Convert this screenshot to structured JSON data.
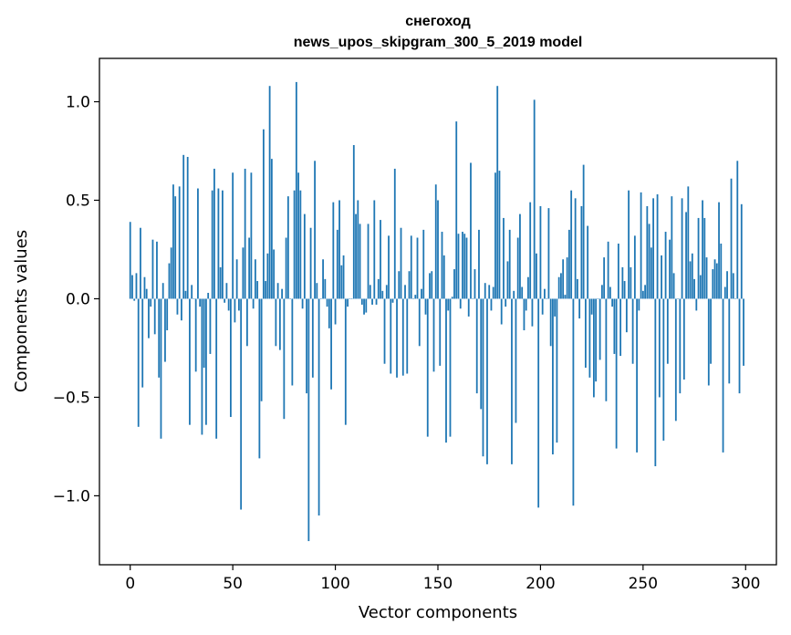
{
  "chart_data": {
    "type": "bar",
    "title": "снегоход",
    "subtitle": "news_upos_skipgram_300_5_2019 model",
    "xlabel": "Vector components",
    "ylabel": "Components values",
    "xlim": [
      -15,
      315
    ],
    "ylim": [
      -1.35,
      1.22
    ],
    "xticks": [
      0,
      50,
      100,
      150,
      200,
      250,
      300
    ],
    "xtick_labels": [
      "0",
      "50",
      "100",
      "150",
      "200",
      "250",
      "300"
    ],
    "yticks": [
      -1.0,
      -0.5,
      0.0,
      0.5,
      1.0
    ],
    "ytick_labels": [
      "−1.0",
      "−0.5",
      "0.0",
      "0.5",
      "1.0"
    ],
    "grid": false,
    "bar_color": "#1f77b4",
    "x": [
      0,
      1,
      2,
      3,
      4,
      5,
      6,
      7,
      8,
      9,
      10,
      11,
      12,
      13,
      14,
      15,
      16,
      17,
      18,
      19,
      20,
      21,
      22,
      23,
      24,
      25,
      26,
      27,
      28,
      29,
      30,
      31,
      32,
      33,
      34,
      35,
      36,
      37,
      38,
      39,
      40,
      41,
      42,
      43,
      44,
      45,
      46,
      47,
      48,
      49,
      50,
      51,
      52,
      53,
      54,
      55,
      56,
      57,
      58,
      59,
      60,
      61,
      62,
      63,
      64,
      65,
      66,
      67,
      68,
      69,
      70,
      71,
      72,
      73,
      74,
      75,
      76,
      77,
      78,
      79,
      80,
      81,
      82,
      83,
      84,
      85,
      86,
      87,
      88,
      89,
      90,
      91,
      92,
      93,
      94,
      95,
      96,
      97,
      98,
      99,
      100,
      101,
      102,
      103,
      104,
      105,
      106,
      107,
      108,
      109,
      110,
      111,
      112,
      113,
      114,
      115,
      116,
      117,
      118,
      119,
      120,
      121,
      122,
      123,
      124,
      125,
      126,
      127,
      128,
      129,
      130,
      131,
      132,
      133,
      134,
      135,
      136,
      137,
      138,
      139,
      140,
      141,
      142,
      143,
      144,
      145,
      146,
      147,
      148,
      149,
      150,
      151,
      152,
      153,
      154,
      155,
      156,
      157,
      158,
      159,
      160,
      161,
      162,
      163,
      164,
      165,
      166,
      167,
      168,
      169,
      170,
      171,
      172,
      173,
      174,
      175,
      176,
      177,
      178,
      179,
      180,
      181,
      182,
      183,
      184,
      185,
      186,
      187,
      188,
      189,
      190,
      191,
      192,
      193,
      194,
      195,
      196,
      197,
      198,
      199,
      200,
      201,
      202,
      203,
      204,
      205,
      206,
      207,
      208,
      209,
      210,
      211,
      212,
      213,
      214,
      215,
      216,
      217,
      218,
      219,
      220,
      221,
      222,
      223,
      224,
      225,
      226,
      227,
      228,
      229,
      230,
      231,
      232,
      233,
      234,
      235,
      236,
      237,
      238,
      239,
      240,
      241,
      242,
      243,
      244,
      245,
      246,
      247,
      248,
      249,
      250,
      251,
      252,
      253,
      254,
      255,
      256,
      257,
      258,
      259,
      260,
      261,
      262,
      263,
      264,
      265,
      266,
      267,
      268,
      269,
      270,
      271,
      272,
      273,
      274,
      275,
      276,
      277,
      278,
      279,
      280,
      281,
      282,
      283,
      284,
      285,
      286,
      287,
      288,
      289,
      290,
      291,
      292,
      293,
      294,
      295,
      296,
      297,
      298,
      299
    ],
    "values": [
      0.39,
      0.12,
      -0.01,
      0.13,
      -0.65,
      0.36,
      -0.45,
      0.11,
      0.05,
      -0.2,
      -0.04,
      0.3,
      -0.18,
      0.29,
      -0.4,
      -0.71,
      0.08,
      -0.32,
      -0.16,
      0.18,
      0.26,
      0.58,
      0.52,
      -0.08,
      0.57,
      -0.11,
      0.73,
      0.04,
      0.72,
      -0.64,
      0.07,
      0.0,
      -0.37,
      0.56,
      -0.04,
      -0.69,
      -0.35,
      -0.64,
      0.03,
      -0.28,
      0.55,
      0.66,
      -0.71,
      0.56,
      0.16,
      0.55,
      -0.02,
      0.08,
      -0.06,
      -0.6,
      0.64,
      -0.12,
      0.2,
      -0.06,
      -1.07,
      0.26,
      0.66,
      -0.24,
      0.31,
      0.64,
      -0.05,
      0.2,
      0.09,
      -0.81,
      -0.52,
      0.86,
      0.09,
      0.23,
      1.08,
      0.71,
      0.25,
      -0.24,
      0.08,
      -0.26,
      0.05,
      -0.61,
      0.31,
      0.52,
      0.0,
      -0.44,
      0.55,
      1.1,
      0.64,
      0.55,
      -0.05,
      0.43,
      -0.48,
      -1.23,
      0.36,
      -0.4,
      0.7,
      0.08,
      -1.1,
      0.0,
      0.2,
      0.1,
      -0.04,
      -0.15,
      -0.46,
      0.49,
      -0.13,
      0.35,
      0.5,
      0.17,
      0.22,
      -0.64,
      -0.04,
      0.0,
      0.0,
      0.78,
      0.43,
      0.5,
      0.38,
      -0.03,
      -0.08,
      -0.07,
      0.38,
      0.07,
      -0.03,
      0.5,
      -0.03,
      0.1,
      0.4,
      0.04,
      -0.33,
      0.07,
      0.32,
      -0.38,
      -0.02,
      0.66,
      -0.4,
      0.14,
      0.36,
      -0.39,
      0.07,
      -0.38,
      0.14,
      0.32,
      0.0,
      0.02,
      0.31,
      -0.24,
      0.05,
      0.35,
      -0.08,
      -0.7,
      0.13,
      0.14,
      -0.37,
      0.58,
      0.5,
      -0.34,
      0.34,
      0.22,
      -0.73,
      -0.06,
      -0.7,
      0.01,
      0.15,
      0.9,
      0.33,
      -0.05,
      0.34,
      0.33,
      0.31,
      -0.09,
      0.69,
      0.0,
      0.15,
      -0.48,
      0.35,
      -0.56,
      -0.8,
      0.08,
      -0.84,
      0.07,
      -0.06,
      0.06,
      0.64,
      1.08,
      0.65,
      -0.13,
      0.41,
      -0.04,
      0.19,
      0.35,
      -0.84,
      0.04,
      -0.63,
      0.31,
      0.43,
      0.06,
      -0.16,
      -0.06,
      0.11,
      0.49,
      -0.14,
      1.01,
      0.23,
      -1.06,
      0.47,
      -0.08,
      0.05,
      0.0,
      0.46,
      -0.24,
      -0.79,
      -0.09,
      -0.73,
      0.11,
      0.13,
      0.2,
      0.02,
      0.21,
      0.35,
      0.55,
      -1.05,
      0.51,
      0.1,
      -0.1,
      0.47,
      0.68,
      -0.35,
      0.37,
      -0.4,
      -0.08,
      -0.5,
      -0.42,
      0.0,
      -0.31,
      0.07,
      0.21,
      -0.52,
      0.29,
      0.06,
      -0.04,
      -0.28,
      -0.76,
      0.28,
      -0.29,
      0.16,
      0.09,
      -0.17,
      0.55,
      0.16,
      -0.33,
      0.32,
      -0.78,
      -0.06,
      0.54,
      0.04,
      0.07,
      0.47,
      0.38,
      0.26,
      0.51,
      -0.85,
      0.53,
      -0.5,
      0.22,
      -0.72,
      0.34,
      -0.33,
      0.3,
      0.52,
      0.13,
      -0.62,
      0.0,
      -0.48,
      0.51,
      -0.41,
      0.44,
      0.57,
      0.19,
      0.23,
      0.1,
      -0.06,
      0.41,
      0.12,
      0.5,
      0.41,
      0.21,
      -0.44,
      -0.33,
      0.15,
      0.2,
      0.18,
      0.49,
      0.28,
      -0.78,
      0.06,
      0.14,
      -0.43,
      0.61,
      0.13,
      0.0,
      0.7,
      -0.48,
      0.48,
      -0.34
    ]
  }
}
